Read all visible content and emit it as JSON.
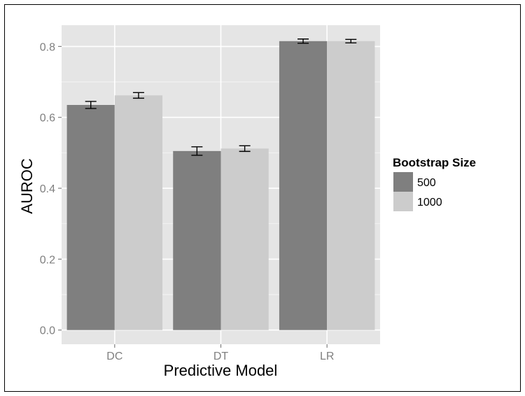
{
  "chart_data": {
    "type": "bar",
    "xlabel": "Predictive Model",
    "ylabel": "AUROC",
    "categories": [
      "DC",
      "DT",
      "LR"
    ],
    "ylim": [
      -0.04,
      0.86
    ],
    "yticks": [
      0.0,
      0.2,
      0.4,
      0.6,
      0.8
    ],
    "ytick_labels": [
      "0.0",
      "0.2",
      "0.4",
      "0.6",
      "0.8"
    ],
    "grid": true,
    "legend": {
      "title": "Bootstrap Size",
      "position": "right"
    },
    "series": [
      {
        "name": "500",
        "color": "#7f7f7f",
        "values": [
          0.635,
          0.505,
          0.815
        ],
        "errors": [
          0.01,
          0.012,
          0.006
        ]
      },
      {
        "name": "1000",
        "color": "#cccccc",
        "values": [
          0.662,
          0.512,
          0.815
        ],
        "errors": [
          0.008,
          0.008,
          0.005
        ]
      }
    ],
    "colors": {
      "panel_background": "#e5e5e5",
      "grid": "#ffffff",
      "error_bar": "#000000"
    }
  }
}
